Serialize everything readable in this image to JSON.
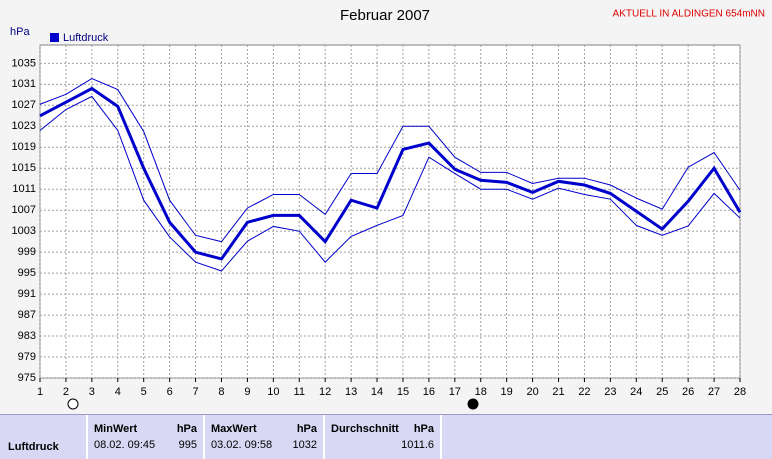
{
  "chart_data": {
    "type": "line",
    "title": "Februar 2007",
    "subtitle": "AKTUELL IN ALDINGEN 654mNN",
    "y_label": "hPa",
    "x": [
      1,
      2,
      3,
      4,
      5,
      6,
      7,
      8,
      9,
      10,
      11,
      12,
      13,
      14,
      15,
      16,
      17,
      18,
      19,
      20,
      21,
      22,
      23,
      24,
      25,
      26,
      27,
      28
    ],
    "series": [
      {
        "name": "Luftdruck",
        "color": "#0000cc",
        "values": [
          1025,
          1027.6,
          1030.2,
          1026.8,
          1015,
          1004.7,
          999,
          997.7,
          1004.7,
          1006,
          1006,
          1001,
          1008.9,
          1007.4,
          1018.6,
          1019.8,
          1014.8,
          1012.7,
          1012.3,
          1010.4,
          1012.5,
          1011.8,
          1010.2,
          1006.8,
          1003.4,
          1008.7,
          1015,
          1006.6
        ]
      },
      {
        "color": "#0000cc",
        "values": [
          1027.2,
          1029.1,
          1032.1,
          1030,
          1022,
          1008.9,
          1002.2,
          1001,
          1007.4,
          1010,
          1010,
          1006.2,
          1014,
          1014,
          1023,
          1023,
          1017.1,
          1014.2,
          1014.2,
          1012.1,
          1013.1,
          1013.1,
          1011.8,
          1009.3,
          1007.2,
          1015.2,
          1018,
          1010.8
        ]
      },
      {
        "color": "#0000cc",
        "values": [
          1022.2,
          1026.2,
          1028.7,
          1022.2,
          1008.9,
          1001.9,
          997.1,
          995.4,
          1001.1,
          1003.9,
          1003,
          997.1,
          1002,
          1004.1,
          1006,
          1017.1,
          1014,
          1011,
          1011,
          1009.1,
          1011.2,
          1010,
          1009.1,
          1004.1,
          1002.2,
          1004,
          1010.2,
          1005.5
        ]
      }
    ],
    "xlim": [
      1,
      28
    ],
    "xticks": [
      1,
      2,
      3,
      4,
      5,
      6,
      7,
      8,
      9,
      10,
      11,
      12,
      13,
      14,
      15,
      16,
      17,
      18,
      19,
      20,
      21,
      22,
      23,
      24,
      25,
      26,
      27,
      28
    ],
    "ylim": [
      975,
      1038.5
    ],
    "yticks": [
      975,
      979,
      983,
      987,
      991,
      995,
      999,
      1003,
      1007,
      1011,
      1015,
      1019,
      1023,
      1027,
      1031,
      1035
    ],
    "grid": true,
    "legend": "top-left"
  },
  "table": {
    "header": [
      "MinWert",
      "hPa",
      "MaxWert",
      "hPa",
      "Durchschnitt",
      "hPa"
    ],
    "rows": [
      [
        "Luftdruck",
        "08.02.  09:45",
        "995",
        "03.02.  09:58",
        "1032",
        "1011.6"
      ]
    ]
  }
}
